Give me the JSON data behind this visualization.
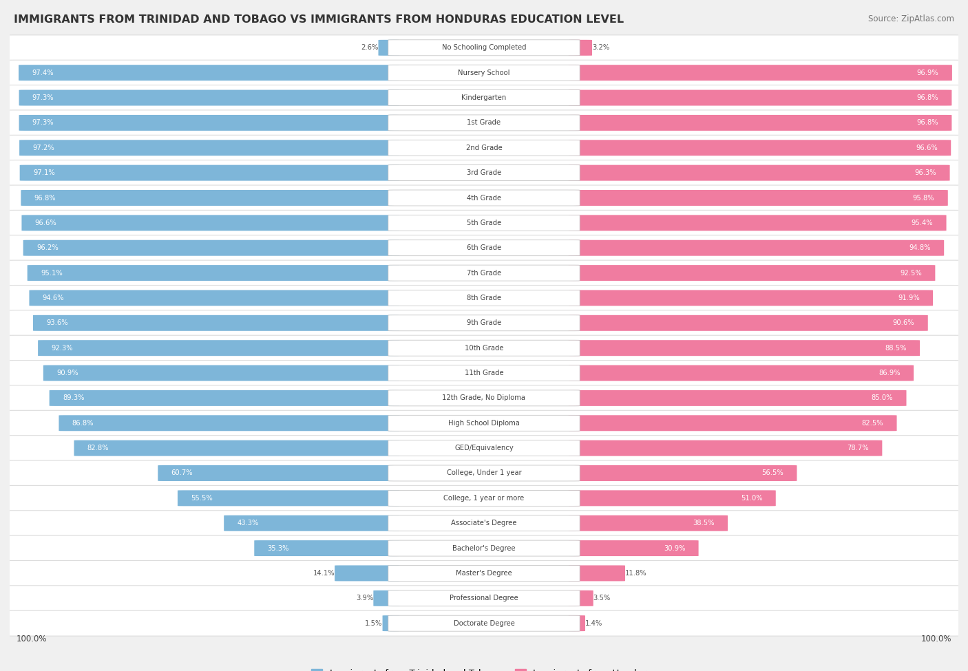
{
  "title": "IMMIGRANTS FROM TRINIDAD AND TOBAGO VS IMMIGRANTS FROM HONDURAS EDUCATION LEVEL",
  "source": "Source: ZipAtlas.com",
  "categories": [
    "No Schooling Completed",
    "Nursery School",
    "Kindergarten",
    "1st Grade",
    "2nd Grade",
    "3rd Grade",
    "4th Grade",
    "5th Grade",
    "6th Grade",
    "7th Grade",
    "8th Grade",
    "9th Grade",
    "10th Grade",
    "11th Grade",
    "12th Grade, No Diploma",
    "High School Diploma",
    "GED/Equivalency",
    "College, Under 1 year",
    "College, 1 year or more",
    "Associate's Degree",
    "Bachelor's Degree",
    "Master's Degree",
    "Professional Degree",
    "Doctorate Degree"
  ],
  "trinidad_values": [
    2.6,
    97.4,
    97.3,
    97.3,
    97.2,
    97.1,
    96.8,
    96.6,
    96.2,
    95.1,
    94.6,
    93.6,
    92.3,
    90.9,
    89.3,
    86.8,
    82.8,
    60.7,
    55.5,
    43.3,
    35.3,
    14.1,
    3.9,
    1.5
  ],
  "honduras_values": [
    3.2,
    96.9,
    96.8,
    96.8,
    96.6,
    96.3,
    95.8,
    95.4,
    94.8,
    92.5,
    91.9,
    90.6,
    88.5,
    86.9,
    85.0,
    82.5,
    78.7,
    56.5,
    51.0,
    38.5,
    30.9,
    11.8,
    3.5,
    1.4
  ],
  "blue_color": "#7EB6D9",
  "pink_color": "#F07CA0",
  "bg_color": "#F0F0F0",
  "bar_bg_color": "#FFFFFF",
  "row_border_color": "#DDDDDD",
  "legend_blue": "Immigrants from Trinidad and Tobago",
  "legend_pink": "Immigrants from Honduras",
  "label_inside_color": "#FFFFFF",
  "label_outside_color": "#555555",
  "inside_threshold": 15.0
}
